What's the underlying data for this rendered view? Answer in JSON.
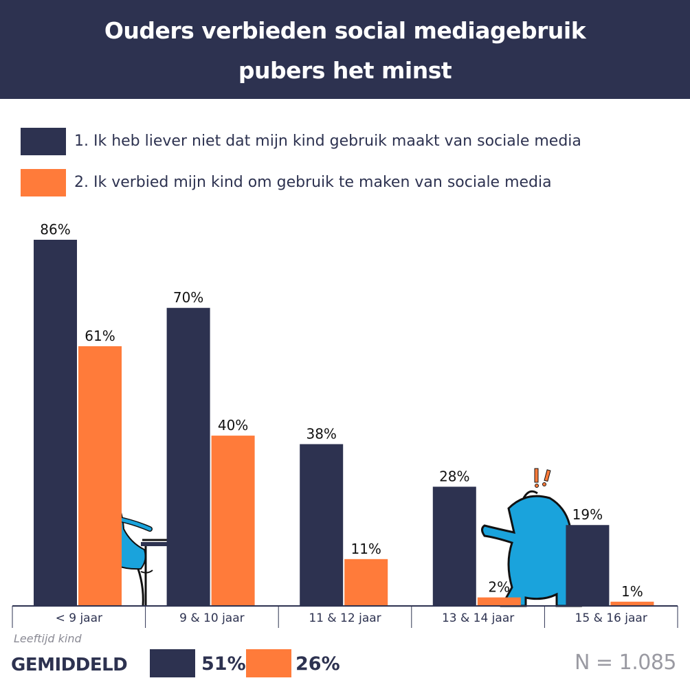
{
  "header": {
    "title_line1": "Ouders verbieden social mediagebruik",
    "title_line2": "pubers het minst"
  },
  "legend": {
    "items": [
      {
        "label": "1. Ik heb liever niet dat mijn kind gebruik maakt van sociale media",
        "color": "#2d3250"
      },
      {
        "label": "2. Ik verbied mijn kind om gebruik te maken van sociale media",
        "color": "#ff7b3a"
      }
    ]
  },
  "chart_data": {
    "type": "bar",
    "categories": [
      "< 9 jaar",
      "9 & 10 jaar",
      "11 & 12 jaar",
      "13 & 14 jaar",
      "15 & 16 jaar"
    ],
    "series": [
      {
        "values": [
          86,
          70,
          38,
          28,
          19
        ],
        "color": "#2d3250"
      },
      {
        "values": [
          61,
          40,
          11,
          2,
          1
        ],
        "color": "#ff7b3a"
      }
    ],
    "value_labels": [
      [
        "86%",
        "70%",
        "38%",
        "28%",
        "19%"
      ],
      [
        "61%",
        "40%",
        "11%",
        "2%",
        "1%"
      ]
    ],
    "xlabel": "Leeftijd kind",
    "ylim": [
      0,
      86
    ],
    "grid": false
  },
  "summary": {
    "title": "GEMIDDELD",
    "value1": "51%",
    "value2": "26%",
    "n_label": "N = 1.085"
  },
  "colors": {
    "navy": "#2d3250",
    "orange": "#ff7b3a",
    "illustration_blue": "#1aa3dc"
  }
}
